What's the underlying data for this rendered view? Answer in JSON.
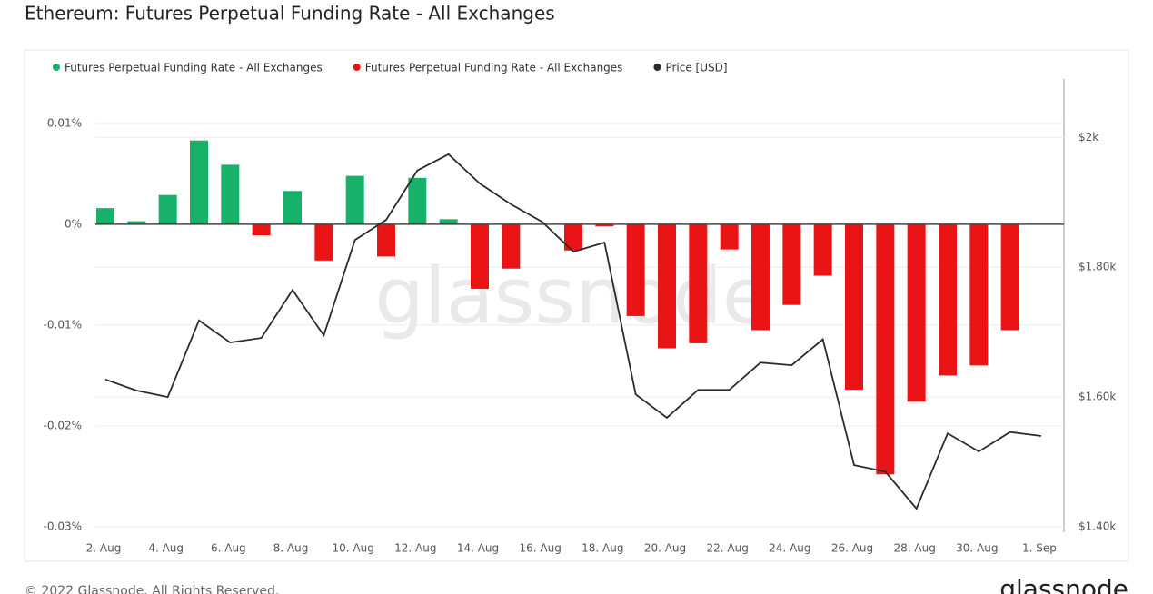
{
  "chart_data": {
    "type": "bar",
    "title": "Ethereum: Futures Perpetual Funding Rate - All Exchanges",
    "watermark": "glassnode",
    "categories": [
      "2. Aug",
      null,
      "4. Aug",
      null,
      "6. Aug",
      null,
      "8. Aug",
      null,
      "10. Aug",
      null,
      "12. Aug",
      null,
      "14. Aug",
      null,
      "16. Aug",
      null,
      "18. Aug",
      null,
      "20. Aug",
      null,
      "22. Aug",
      null,
      "24. Aug",
      null,
      "26. Aug",
      null,
      "28. Aug",
      null,
      "30. Aug",
      null,
      "1. Sep"
    ],
    "series": [
      {
        "name": "Futures Perpetual Funding Rate - All Exchanges",
        "color": "#17b26a",
        "values": [
          0.0016,
          0.0003,
          0.0029,
          0.0083,
          0.0059,
          null,
          0.0033,
          null,
          0.0048,
          null,
          0.0046,
          0.0005,
          null,
          null,
          null,
          null,
          null,
          null,
          null,
          null,
          null,
          null,
          null,
          null,
          null,
          null,
          null,
          null,
          null,
          null,
          null
        ]
      },
      {
        "name": "Futures Perpetual Funding Rate - All Exchanges",
        "color": "#ea1316",
        "values": [
          null,
          null,
          null,
          null,
          null,
          -0.0011,
          null,
          -0.0036,
          null,
          -0.0032,
          null,
          null,
          -0.0064,
          -0.0044,
          null,
          -0.0026,
          -0.0002,
          -0.0091,
          -0.0123,
          -0.0118,
          -0.0025,
          -0.0105,
          -0.008,
          -0.0051,
          -0.0164,
          -0.0248,
          -0.0176,
          -0.015,
          -0.014,
          -0.0105,
          null
        ]
      },
      {
        "name": "Price [USD]",
        "color": "#2b2b2b",
        "axis": "y2",
        "type": "line",
        "values": [
          1627,
          1610,
          1600,
          1718,
          1684,
          1691,
          1765,
          1695,
          1842,
          1873,
          1949,
          1974,
          1929,
          1897,
          1870,
          1824,
          1838,
          1604,
          1568,
          1611,
          1611,
          1653,
          1649,
          1689,
          1495,
          1485,
          1428,
          1544,
          1516,
          1546,
          1540
        ]
      }
    ],
    "ylim": [
      -0.03,
      0.0144
    ],
    "yticks": [
      {
        "value": -0.03,
        "label": "-0.03%"
      },
      {
        "value": -0.02,
        "label": "-0.02%"
      },
      {
        "value": -0.01,
        "label": "-0.01%"
      },
      {
        "value": 0,
        "label": "0%"
      },
      {
        "value": 0.01,
        "label": "0.01%"
      }
    ],
    "y2lim": [
      1400,
      2090
    ],
    "y2ticks": [
      {
        "value": 1400,
        "label": "$1.40k"
      },
      {
        "value": 1600,
        "label": "$1.60k"
      },
      {
        "value": 1800,
        "label": "$1.80k"
      },
      {
        "value": 2000,
        "label": "$2k"
      }
    ],
    "grid": true,
    "legend": "top-left"
  },
  "footer": {
    "copyright": "© 2022 Glassnode. All Rights Reserved.",
    "brand": "glassnode"
  }
}
